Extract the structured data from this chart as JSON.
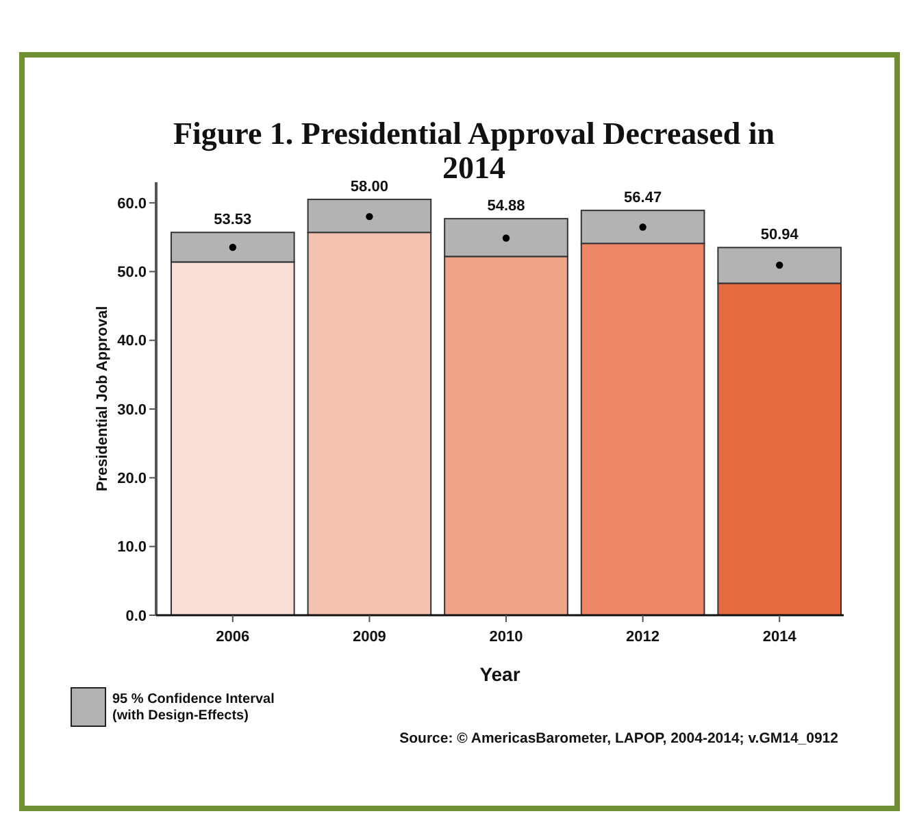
{
  "chart_data": {
    "type": "bar",
    "stacked": true,
    "legend": "bottom left",
    "title": "Figure 1. Presidential Approval Decreased in 2014",
    "xlabel": "Year",
    "ylabel": "Presidential Job Approval",
    "categories": [
      "2006",
      "2009",
      "2010",
      "2012",
      "2014"
    ],
    "series": [
      {
        "colors": [
          "#f9dfd5",
          "#f4c2b0",
          "#f0a48a",
          "#ec8666",
          "#e66a40"
        ],
        "values": [
          51.4,
          55.7,
          52.2,
          54.1,
          48.3
        ]
      },
      {
        "type": "bar",
        "name": "95 % Confidence Interval (with Design-Effects)",
        "color": "#b3b3b3",
        "values": [
          4.3,
          4.8,
          5.5,
          4.8,
          5.2
        ]
      },
      {
        "type": "scatter",
        "color": "#000000",
        "values": [
          53.53,
          58.0,
          54.88,
          56.47,
          50.94
        ],
        "value_labels": [
          "53.53",
          "58.00",
          "54.88",
          "56.47",
          "50.94"
        ]
      }
    ],
    "ylim": [
      0,
      63
    ],
    "yticks": [
      {
        "value": 0,
        "label": "0.0"
      },
      {
        "value": 10,
        "label": "10.0"
      },
      {
        "value": 20,
        "label": "20.0"
      },
      {
        "value": 30,
        "label": "30.0"
      },
      {
        "value": 40,
        "label": "40.0"
      },
      {
        "value": 50,
        "label": "50.0"
      },
      {
        "value": 60,
        "label": "60.0"
      }
    ],
    "annotations": [
      "Source: © AmericasBarometer, LAPOP, 2004-2014; v.GM14_0912"
    ]
  }
}
